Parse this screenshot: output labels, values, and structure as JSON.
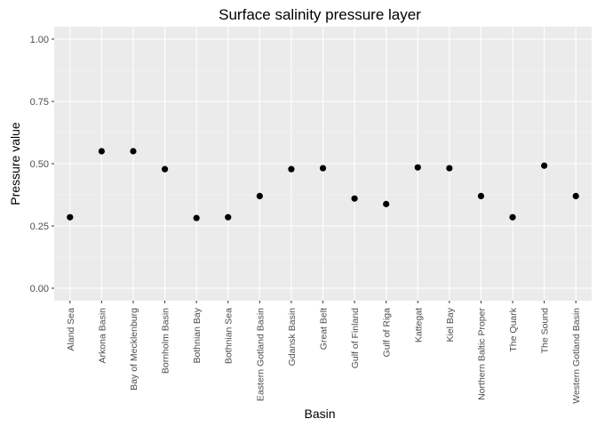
{
  "chart_data": {
    "type": "scatter",
    "title": "Surface salinity pressure layer",
    "xlabel": "Basin",
    "ylabel": "Pressure value",
    "ylim": [
      -0.05,
      1.05
    ],
    "yticks": [
      0.0,
      0.25,
      0.5,
      0.75,
      1.0
    ],
    "ytick_labels": [
      "0.00",
      "0.25",
      "0.50",
      "0.75",
      "1.00"
    ],
    "grid": true,
    "categories": [
      "Aland Sea",
      "Arkona Basin",
      "Bay of Mecklenburg",
      "Bornholm Basin",
      "Bothnian Bay",
      "Bothnian Sea",
      "Eastern Gotland Basin",
      "Gdansk Basin",
      "Great Belt",
      "Gulf of Finland",
      "Gulf of Riga",
      "Kattegat",
      "Kiel Bay",
      "Northern Baltic Proper",
      "The Quark",
      "The Sound",
      "Western Gotland Basin"
    ],
    "values": [
      0.285,
      0.55,
      0.55,
      0.478,
      0.282,
      0.285,
      0.37,
      0.478,
      0.482,
      0.36,
      0.338,
      0.485,
      0.482,
      0.37,
      0.285,
      0.492,
      0.37
    ],
    "colors": {
      "panel": "#ebebeb",
      "grid_major": "#ffffff",
      "grid_minor": "#f5f5f5",
      "point": "#000000",
      "tick": "#333333"
    }
  }
}
